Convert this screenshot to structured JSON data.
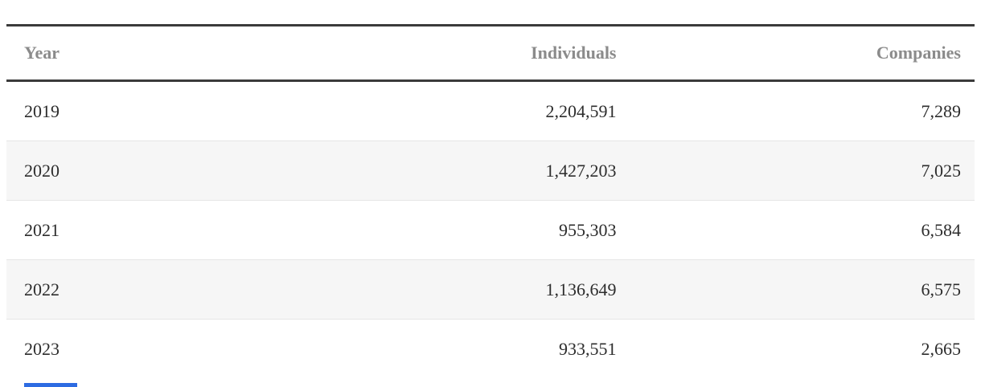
{
  "header": {
    "columns": [
      "Year",
      "Individuals",
      "Companies"
    ]
  },
  "rows": [
    {
      "cells": [
        "2019",
        "2,204,591",
        "7,289"
      ]
    },
    {
      "cells": [
        "2020",
        "1,427,203",
        "7,025"
      ]
    },
    {
      "cells": [
        "2021",
        "955,303",
        "6,584"
      ]
    },
    {
      "cells": [
        "2022",
        "1,136,649",
        "6,575"
      ]
    },
    {
      "cells": [
        "2023",
        "933,551",
        "2,665"
      ]
    }
  ],
  "chart_data": {
    "type": "table",
    "columns": [
      "Year",
      "Individuals",
      "Companies"
    ],
    "rows": [
      [
        2019,
        2204591,
        7289
      ],
      [
        2020,
        1427203,
        7025
      ],
      [
        2021,
        955303,
        6584
      ],
      [
        2022,
        1136649,
        6575
      ],
      [
        2023,
        933551,
        2665
      ]
    ]
  },
  "colors": {
    "heavy_rule": "#3b3b3b",
    "header_text": "#8b8b8b",
    "body_text": "#2d2d2d",
    "alt_row_bg": "#f6f6f6",
    "row_divider": "#e5e5e5",
    "cutoff_element_blue": "#2d6be2"
  }
}
